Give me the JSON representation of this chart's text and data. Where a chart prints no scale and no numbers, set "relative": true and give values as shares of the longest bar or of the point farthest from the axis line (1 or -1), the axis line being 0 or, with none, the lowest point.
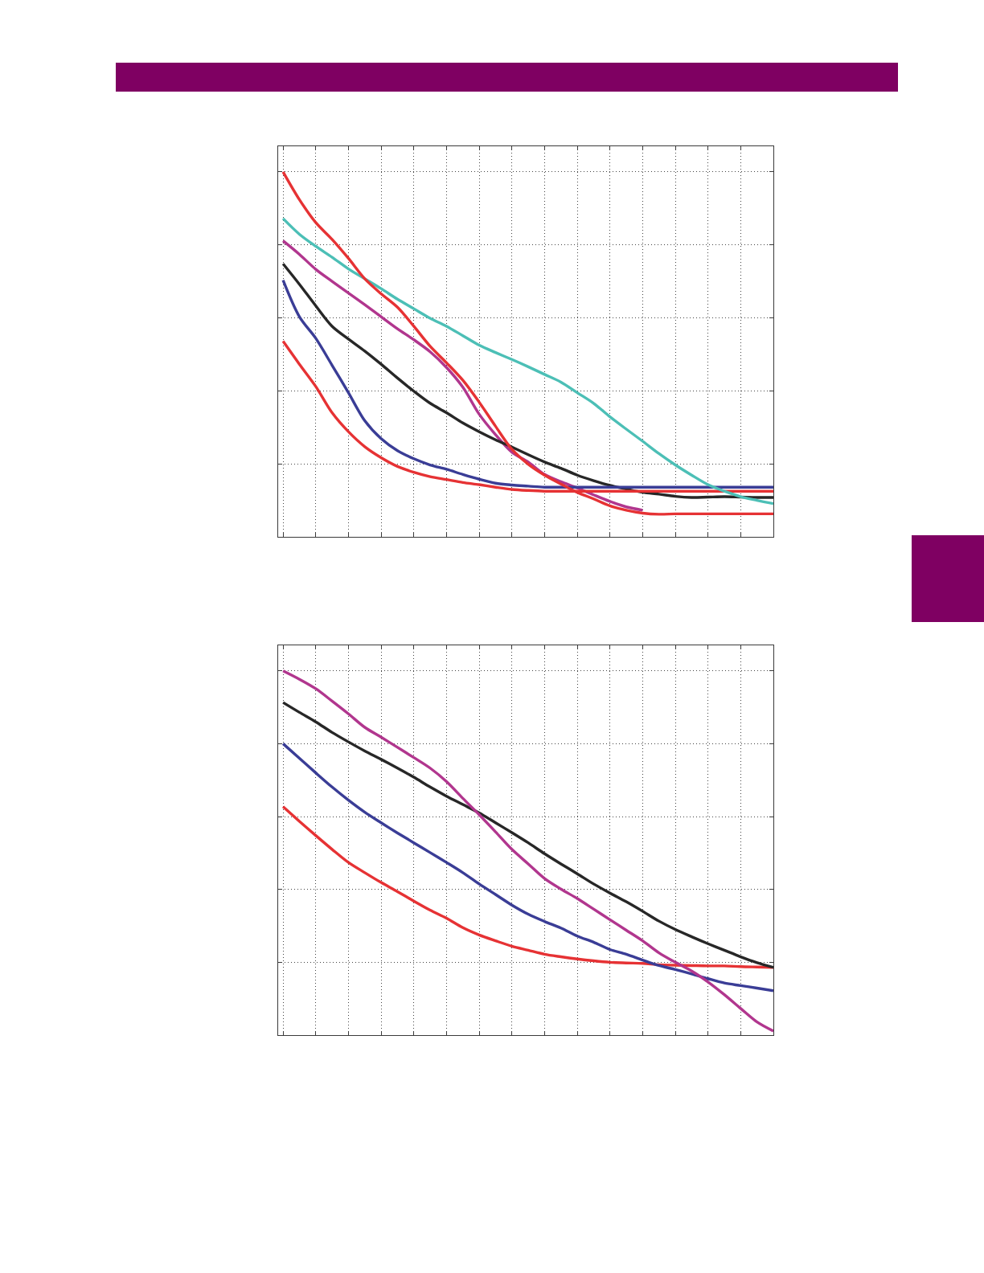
{
  "chart_data": [
    {
      "type": "line",
      "relative": true,
      "grid": true,
      "line_style": "solid",
      "categories": [
        null,
        null,
        null,
        null,
        null,
        null,
        null,
        null,
        null,
        null,
        null,
        null,
        null,
        null,
        null,
        null,
        null,
        null,
        null,
        null,
        null,
        null,
        null,
        null,
        null,
        null,
        null,
        null,
        null,
        null,
        null
      ],
      "series": [
        {
          "color": "#b1368e",
          "values": [
            0.811,
            0.774,
            0.733,
            0.7,
            0.668,
            0.636,
            0.603,
            0.57,
            0.54,
            0.507,
            0.464,
            0.41,
            0.336,
            0.28,
            0.232,
            0.205,
            0.171,
            0.151,
            0.134,
            0.115,
            0.097,
            0.082,
            0.073,
            null,
            null,
            null,
            null,
            null,
            null,
            null,
            null
          ]
        },
        {
          "color": "#272727",
          "values": [
            0.748,
            0.692,
            0.633,
            0.577,
            0.542,
            0.509,
            0.473,
            0.435,
            0.399,
            0.366,
            0.34,
            0.312,
            0.288,
            0.266,
            0.246,
            0.225,
            0.205,
            0.188,
            0.169,
            0.154,
            0.141,
            0.131,
            0.122,
            0.117,
            0.111,
            0.108,
            0.109,
            0.11,
            0.109,
            0.108,
            0.108
          ]
        },
        {
          "color": "#3a3d96",
          "values": [
            0.703,
            0.603,
            0.544,
            0.47,
            0.395,
            0.318,
            0.269,
            0.236,
            0.214,
            0.197,
            0.185,
            0.171,
            0.158,
            0.147,
            0.142,
            0.139,
            0.136,
            0.136,
            0.136,
            0.136,
            0.136,
            0.136,
            0.136,
            0.136,
            0.136,
            0.136,
            0.136,
            0.136,
            0.136,
            0.136,
            0.136
          ]
        },
        {
          "color": "#e63234",
          "values": [
            0.536,
            0.473,
            0.412,
            0.34,
            0.288,
            0.247,
            0.217,
            0.193,
            0.177,
            0.165,
            0.157,
            0.149,
            0.143,
            0.136,
            0.13,
            0.127,
            0.125,
            0.125,
            0.125,
            0.125,
            0.125,
            0.125,
            0.125,
            0.125,
            0.125,
            0.125,
            0.125,
            0.125,
            0.125,
            0.125,
            0.125
          ]
        },
        {
          "color": "#4cbfb6",
          "values": [
            0.872,
            0.829,
            0.796,
            0.766,
            0.734,
            0.707,
            0.68,
            0.651,
            0.625,
            0.599,
            0.577,
            0.551,
            0.525,
            0.505,
            0.486,
            0.466,
            0.445,
            0.424,
            0.395,
            0.366,
            0.329,
            0.295,
            0.262,
            0.228,
            0.197,
            0.169,
            0.143,
            0.125,
            0.11,
            0.1,
            0.091
          ]
        },
        {
          "color": "#e63234",
          "values": [
            1.0,
            0.924,
            0.861,
            0.815,
            0.763,
            0.707,
            0.666,
            0.629,
            0.577,
            0.522,
            0.477,
            0.429,
            0.369,
            0.303,
            0.24,
            0.199,
            0.169,
            0.145,
            0.122,
            0.104,
            0.085,
            0.073,
            0.065,
            0.062,
            0.063,
            0.063,
            0.063,
            0.063,
            0.063,
            0.063,
            0.063
          ]
        }
      ]
    },
    {
      "type": "line",
      "relative": true,
      "grid": true,
      "line_style": "solid",
      "categories": [
        null,
        null,
        null,
        null,
        null,
        null,
        null,
        null,
        null,
        null,
        null,
        null,
        null,
        null,
        null,
        null,
        null,
        null,
        null,
        null,
        null,
        null,
        null,
        null,
        null,
        null,
        null,
        null,
        null,
        null,
        null
      ],
      "series": [
        {
          "color": "#e63234",
          "values": [
            0.627,
            0.587,
            0.548,
            0.51,
            0.474,
            0.446,
            0.419,
            0.394,
            0.368,
            0.343,
            0.321,
            0.295,
            0.275,
            0.259,
            0.244,
            0.233,
            0.222,
            0.215,
            0.209,
            0.204,
            0.2,
            0.198,
            0.197,
            0.193,
            0.192,
            0.191,
            0.19,
            0.19,
            0.188,
            0.187,
            0.186
          ]
        },
        {
          "color": "#3a3d96",
          "values": [
            0.8,
            0.76,
            0.72,
            0.681,
            0.645,
            0.612,
            0.583,
            0.555,
            0.528,
            0.501,
            0.474,
            0.446,
            0.415,
            0.386,
            0.357,
            0.332,
            0.312,
            0.294,
            0.272,
            0.255,
            0.235,
            0.222,
            0.206,
            0.191,
            0.18,
            0.168,
            0.155,
            0.143,
            0.136,
            0.129,
            0.122
          ]
        },
        {
          "color": "#272727",
          "values": [
            0.913,
            0.886,
            0.86,
            0.831,
            0.805,
            0.78,
            0.757,
            0.733,
            0.708,
            0.681,
            0.656,
            0.633,
            0.61,
            0.583,
            0.556,
            0.528,
            0.498,
            0.47,
            0.443,
            0.415,
            0.39,
            0.366,
            0.34,
            0.313,
            0.29,
            0.27,
            0.251,
            0.233,
            0.215,
            0.199,
            0.186
          ]
        },
        {
          "color": "#b1368e",
          "values": [
            1.0,
            0.977,
            0.951,
            0.917,
            0.882,
            0.845,
            0.818,
            0.79,
            0.762,
            0.733,
            0.696,
            0.65,
            0.605,
            0.558,
            0.51,
            0.47,
            0.43,
            0.401,
            0.375,
            0.346,
            0.317,
            0.288,
            0.259,
            0.226,
            0.2,
            0.176,
            0.146,
            0.111,
            0.073,
            0.036,
            0.011
          ]
        }
      ]
    }
  ]
}
